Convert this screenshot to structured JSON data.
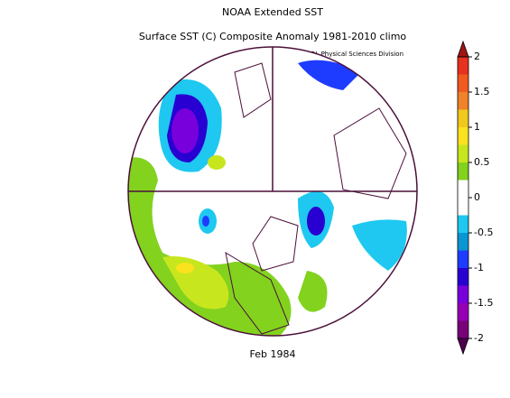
{
  "header": {
    "title": "NOAA Extended SST",
    "subtitle": "Surface SST (C) Composite Anomaly 1981-2010 climo",
    "credit": "NOAA/ESRL Physical Sciences Division"
  },
  "map": {
    "date": "Feb 1984"
  },
  "colorbar": {
    "ticks": [
      -2,
      -1.5,
      -1,
      -0.5,
      0,
      0.5,
      1,
      1.5,
      2
    ],
    "colors": [
      "#500050",
      "#780078",
      "#9600b4",
      "#7800dc",
      "#2800d2",
      "#1e3cff",
      "#0a96d2",
      "#1ec8f0",
      "#ffffff",
      "#ffffff",
      "#82d21e",
      "#c8e61e",
      "#fae21e",
      "#f0c81e",
      "#f08228",
      "#f05a1e",
      "#e6321e",
      "#a01414"
    ]
  }
}
